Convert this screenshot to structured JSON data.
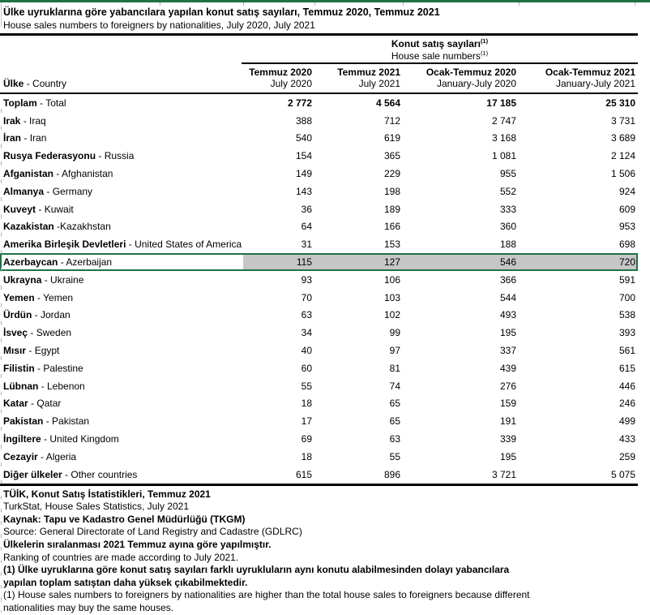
{
  "title": {
    "tr": "Ülke uyruklarına göre yabancılara yapılan konut satış sayıları, Temmuz 2020, Temmuz 2021",
    "en": "House sales numbers to foreigners by nationalities, July 2020, July 2021"
  },
  "table": {
    "group_header": {
      "tr": "Konut satış sayıları",
      "en": "House sale numbers",
      "footnote_mark": "(1)"
    },
    "country_col_header": {
      "tr": "Ülke",
      "sep": " - ",
      "en": "Country"
    },
    "columns": [
      {
        "tr": "Temmuz 2020",
        "en": "July 2020"
      },
      {
        "tr": "Temmuz 2021",
        "en": "July 2021"
      },
      {
        "tr": "Ocak-Temmuz 2020",
        "en": "January-July 2020"
      },
      {
        "tr": "Ocak-Temmuz 2021",
        "en": "January-July 2021"
      }
    ],
    "rows": [
      {
        "tr": "Toplam",
        "sep": " - ",
        "en": "Total",
        "bold": true,
        "highlight": false,
        "values": [
          "2 772",
          "4 564",
          "17 185",
          "25 310"
        ]
      },
      {
        "tr": "Irak",
        "sep": " - ",
        "en": "Iraq",
        "bold": false,
        "highlight": false,
        "values": [
          "388",
          "712",
          "2 747",
          "3 731"
        ]
      },
      {
        "tr": "İran",
        "sep": " - ",
        "en": "Iran",
        "bold": false,
        "highlight": false,
        "values": [
          "540",
          "619",
          "3 168",
          "3 689"
        ]
      },
      {
        "tr": "Rusya Federasyonu",
        "sep": " - ",
        "en": "Russia",
        "bold": false,
        "highlight": false,
        "values": [
          "154",
          "365",
          "1 081",
          "2 124"
        ]
      },
      {
        "tr": "Afganistan",
        "sep": " - ",
        "en": "Afghanistan",
        "bold": false,
        "highlight": false,
        "values": [
          "149",
          "229",
          "955",
          "1 506"
        ]
      },
      {
        "tr": "Almanya",
        "sep": " - ",
        "en": "Germany",
        "bold": false,
        "highlight": false,
        "values": [
          "143",
          "198",
          "552",
          "924"
        ]
      },
      {
        "tr": "Kuveyt",
        "sep": " - ",
        "en": "Kuwait",
        "bold": false,
        "highlight": false,
        "values": [
          "36",
          "189",
          "333",
          "609"
        ]
      },
      {
        "tr": "Kazakistan",
        "sep": " -",
        "en": "Kazakhstan",
        "bold": false,
        "highlight": false,
        "values": [
          "64",
          "166",
          "360",
          "953"
        ]
      },
      {
        "tr": "Amerika Birleşik Devletleri",
        "sep": " - ",
        "en": "United States of America",
        "bold": false,
        "highlight": false,
        "values": [
          "31",
          "153",
          "188",
          "698"
        ]
      },
      {
        "tr": "Azerbaycan",
        "sep": " - ",
        "en": "Azerbaijan",
        "bold": false,
        "highlight": true,
        "values": [
          "115",
          "127",
          "546",
          "720"
        ]
      },
      {
        "tr": "Ukrayna",
        "sep": " - ",
        "en": "Ukraine",
        "bold": false,
        "highlight": false,
        "values": [
          "93",
          "106",
          "366",
          "591"
        ]
      },
      {
        "tr": "Yemen",
        "sep": " - ",
        "en": "Yemen",
        "bold": false,
        "highlight": false,
        "values": [
          "70",
          "103",
          "544",
          "700"
        ]
      },
      {
        "tr": "Ürdün",
        "sep": " - ",
        "en": "Jordan",
        "bold": false,
        "highlight": false,
        "values": [
          "63",
          "102",
          "493",
          "538"
        ]
      },
      {
        "tr": "İsveç",
        "sep": " - ",
        "en": "Sweden",
        "bold": false,
        "highlight": false,
        "values": [
          "34",
          "99",
          "195",
          "393"
        ]
      },
      {
        "tr": "Mısır",
        "sep": " - ",
        "en": "Egypt",
        "bold": false,
        "highlight": false,
        "values": [
          "40",
          "97",
          "337",
          "561"
        ]
      },
      {
        "tr": "Filistin",
        "sep": " - ",
        "en": "Palestine",
        "bold": false,
        "highlight": false,
        "values": [
          "60",
          "81",
          "439",
          "615"
        ]
      },
      {
        "tr": "Lübnan",
        "sep": " - ",
        "en": "Lebenon",
        "bold": false,
        "highlight": false,
        "values": [
          "55",
          "74",
          "276",
          "446"
        ]
      },
      {
        "tr": "Katar",
        "sep": " - ",
        "en": "Qatar",
        "bold": false,
        "highlight": false,
        "values": [
          "18",
          "65",
          "159",
          "246"
        ]
      },
      {
        "tr": "Pakistan",
        "sep": " - ",
        "en": "Pakistan",
        "bold": false,
        "highlight": false,
        "values": [
          "17",
          "65",
          "191",
          "499"
        ]
      },
      {
        "tr": "İngiltere",
        "sep": " - ",
        "en": "United Kingdom",
        "bold": false,
        "highlight": false,
        "values": [
          "69",
          "63",
          "339",
          "433"
        ]
      },
      {
        "tr": "Cezayir",
        "sep": " - ",
        "en": "Algeria",
        "bold": false,
        "highlight": false,
        "values": [
          "18",
          "55",
          "195",
          "259"
        ]
      },
      {
        "tr": "Diğer ülkeler",
        "sep": " - ",
        "en": "Other countries",
        "bold": false,
        "highlight": false,
        "values": [
          "615",
          "896",
          "3 721",
          "5 075"
        ]
      }
    ]
  },
  "footer": {
    "lines": [
      {
        "text": "TÜİK, Konut Satış İstatistikleri, Temmuz 2021",
        "bold": true
      },
      {
        "text": "TurkStat, House Sales Statistics, July 2021",
        "bold": false
      },
      {
        "text": "Kaynak: Tapu ve Kadastro Genel Müdürlüğü (TKGM)",
        "bold": true
      },
      {
        "text": "Source: General Directorate of Land Registry and Cadastre (GDLRC)",
        "bold": false
      },
      {
        "text": "Ülkelerin sıralanması 2021 Temmuz ayına göre yapılmıştır.",
        "bold": true
      },
      {
        "text": "Ranking of countries are made according to July 2021.",
        "bold": false
      },
      {
        "text": "(1) Ülke uyruklarına göre konut satış sayıları farklı uyrukluların aynı konutu alabilmesinden dolayı yabancılara",
        "bold": true
      },
      {
        "text": "yapılan toplam satıştan daha  yüksek çıkabilmektedir.",
        "bold": true
      },
      {
        "text": "(1) House sales numbers to foreigners by nationalities are higher than the total house sales to foreigners because different",
        "bold": false
      },
      {
        "text": "nationalities may buy the same houses.",
        "bold": false
      }
    ]
  },
  "colors": {
    "accent_green": "#1F7245",
    "highlight_gray": "#C6C6C6",
    "border_black": "#000000",
    "gridline_gray": "#B0B0B0"
  }
}
